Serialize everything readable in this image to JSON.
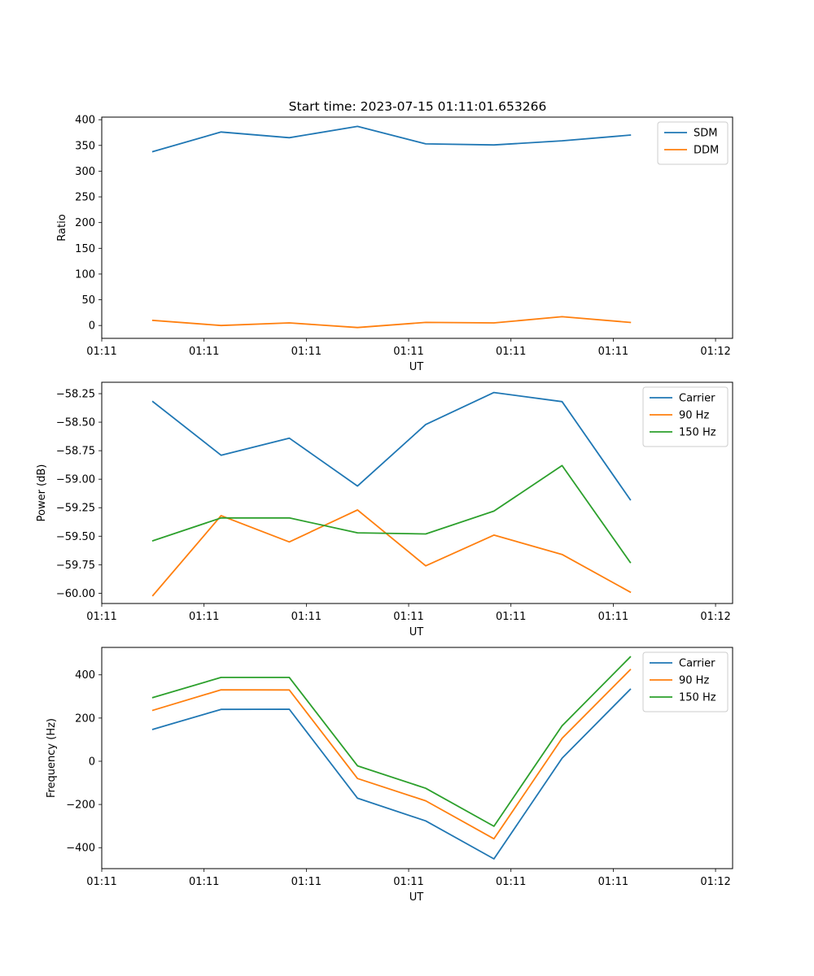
{
  "title": "Start time: 2023-07-15 01:11:01.653266",
  "colors": {
    "c0": "#1f77b4",
    "c1": "#ff7f0e",
    "c2": "#2ca02c"
  },
  "chart_data": [
    {
      "type": "line",
      "title": "Start time: 2023-07-15 01:11:01.653266",
      "xlabel": "UT",
      "ylabel": "Ratio",
      "x": [
        0,
        1,
        2,
        3,
        4,
        5,
        6,
        7
      ],
      "xlim": [
        -0.75,
        8.5
      ],
      "xticks": {
        "positions": [
          -0.75,
          0.75,
          2.25,
          3.75,
          5.25,
          6.75,
          8.25
        ],
        "labels": [
          "01:11",
          "01:11",
          "01:11",
          "01:11",
          "01:11",
          "01:11",
          "01:12"
        ]
      },
      "ylim": [
        -25,
        405
      ],
      "yticks": {
        "values": [
          0,
          50,
          100,
          150,
          200,
          250,
          300,
          350,
          400
        ],
        "labels": [
          "0",
          "50",
          "100",
          "150",
          "200",
          "250",
          "300",
          "350",
          "400"
        ]
      },
      "legend": "top-right",
      "series": [
        {
          "name": "SDM",
          "color": "#1f77b4",
          "values": [
            338,
            376,
            365,
            387,
            353,
            351,
            359,
            370
          ]
        },
        {
          "name": "DDM",
          "color": "#ff7f0e",
          "values": [
            10,
            0,
            5,
            -4,
            6,
            5,
            17,
            6
          ]
        }
      ]
    },
    {
      "type": "line",
      "xlabel": "UT",
      "ylabel": "Power (dB)",
      "x": [
        0,
        1,
        2,
        3,
        4,
        5,
        6,
        7
      ],
      "xlim": [
        -0.75,
        8.5
      ],
      "xticks": {
        "positions": [
          -0.75,
          0.75,
          2.25,
          3.75,
          5.25,
          6.75,
          8.25
        ],
        "labels": [
          "01:11",
          "01:11",
          "01:11",
          "01:11",
          "01:11",
          "01:11",
          "01:12"
        ]
      },
      "ylim": [
        -60.09,
        -58.15
      ],
      "yticks": {
        "values": [
          -58.25,
          -58.5,
          -58.75,
          -59.0,
          -59.25,
          -59.5,
          -59.75,
          -60.0
        ],
        "labels": [
          "−58.25",
          "−58.50",
          "−58.75",
          "−59.00",
          "−59.25",
          "−59.50",
          "−59.75",
          "−60.00"
        ]
      },
      "legend": "top-right",
      "series": [
        {
          "name": "Carrier",
          "color": "#1f77b4",
          "values": [
            -58.32,
            -58.79,
            -58.64,
            -59.06,
            -58.52,
            -58.24,
            -58.32,
            -59.18
          ]
        },
        {
          "name": "90 Hz",
          "color": "#ff7f0e",
          "values": [
            -60.02,
            -59.32,
            -59.55,
            -59.27,
            -59.76,
            -59.49,
            -59.66,
            -59.99
          ]
        },
        {
          "name": "150 Hz",
          "color": "#2ca02c",
          "values": [
            -59.54,
            -59.34,
            -59.34,
            -59.47,
            -59.48,
            -59.28,
            -58.88,
            -59.73
          ]
        }
      ]
    },
    {
      "type": "line",
      "xlabel": "UT",
      "ylabel": "Frequency (Hz)",
      "x": [
        0,
        1,
        2,
        3,
        4,
        5,
        6,
        7
      ],
      "xlim": [
        -0.75,
        8.5
      ],
      "xticks": {
        "positions": [
          -0.75,
          0.75,
          2.25,
          3.75,
          5.25,
          6.75,
          8.25
        ],
        "labels": [
          "01:11",
          "01:11",
          "01:11",
          "01:11",
          "01:11",
          "01:11",
          "01:12"
        ]
      },
      "ylim": [
        -497,
        527
      ],
      "yticks": {
        "values": [
          400,
          200,
          0,
          -200,
          -400
        ],
        "labels": [
          "400",
          "200",
          "0",
          "−200",
          "−400"
        ]
      },
      "legend": "top-right",
      "series": [
        {
          "name": "Carrier",
          "color": "#1f77b4",
          "values": [
            148,
            240,
            241,
            -171,
            -276,
            -452,
            14,
            333
          ]
        },
        {
          "name": "90 Hz",
          "color": "#ff7f0e",
          "values": [
            236,
            331,
            330,
            -80,
            -183,
            -359,
            106,
            424
          ]
        },
        {
          "name": "150 Hz",
          "color": "#2ca02c",
          "values": [
            295,
            388,
            388,
            -21,
            -125,
            -301,
            164,
            483
          ]
        }
      ]
    }
  ]
}
